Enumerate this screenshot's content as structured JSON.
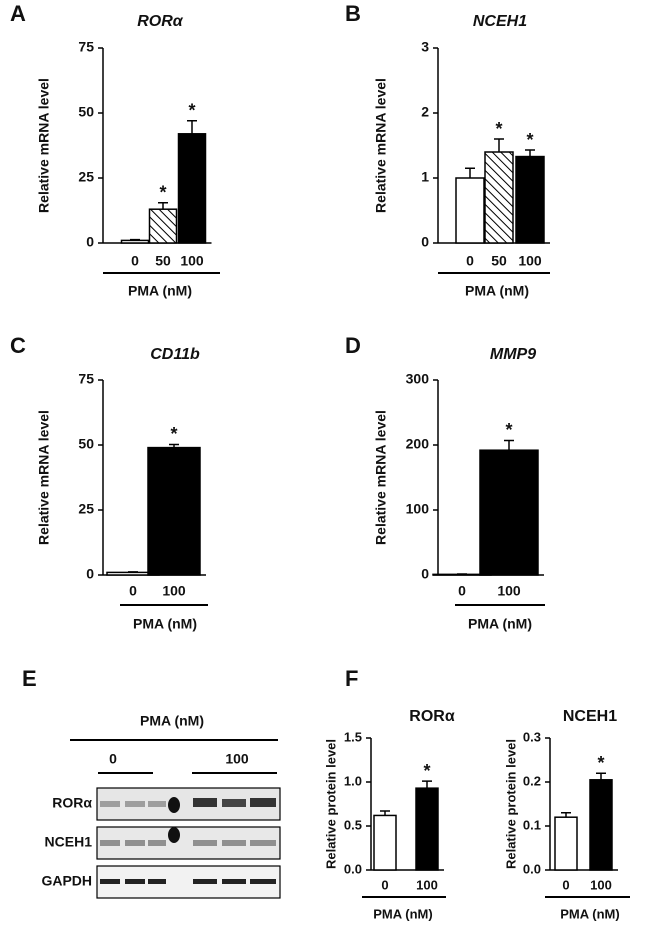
{
  "chart_data": [
    {
      "type": "bar",
      "panel": "A",
      "title": "RORα",
      "italic_title": true,
      "ylabel": "Relative mRNA level",
      "xlabel": "PMA (nM)",
      "categories": [
        "0",
        "50",
        "100"
      ],
      "values": [
        1,
        13,
        42
      ],
      "errors": [
        0.3,
        2.5,
        5
      ],
      "significance": [
        null,
        "*",
        "*"
      ],
      "fills": [
        "#ffffff",
        "hatch",
        "#000000"
      ],
      "ylim": [
        0,
        75
      ],
      "yticks": [
        0,
        25,
        50,
        75
      ]
    },
    {
      "type": "bar",
      "panel": "B",
      "title": "NCEH1",
      "italic_title": true,
      "ylabel": "Relative mRNA level",
      "xlabel": "PMA (nM)",
      "categories": [
        "0",
        "50",
        "100"
      ],
      "values": [
        1.0,
        1.4,
        1.33
      ],
      "errors": [
        0.15,
        0.2,
        0.1
      ],
      "significance": [
        null,
        "*",
        "*"
      ],
      "fills": [
        "#ffffff",
        "hatch",
        "#000000"
      ],
      "ylim": [
        0,
        3
      ],
      "yticks": [
        0,
        1,
        2,
        3
      ]
    },
    {
      "type": "bar",
      "panel": "C",
      "title": "CD11b",
      "italic_title": true,
      "ylabel": "Relative mRNA level",
      "xlabel": "PMA (nM)",
      "categories": [
        "0",
        "100"
      ],
      "values": [
        1,
        49
      ],
      "errors": [
        0.2,
        1.2
      ],
      "significance": [
        null,
        "*"
      ],
      "fills": [
        "#ffffff",
        "#000000"
      ],
      "ylim": [
        0,
        75
      ],
      "yticks": [
        0,
        25,
        50,
        75
      ]
    },
    {
      "type": "bar",
      "panel": "D",
      "title": "MMP9",
      "italic_title": true,
      "ylabel": "Relative mRNA level",
      "xlabel": "PMA (nM)",
      "categories": [
        "0",
        "100"
      ],
      "values": [
        1,
        192
      ],
      "errors": [
        0.5,
        15
      ],
      "significance": [
        null,
        "*"
      ],
      "fills": [
        "#ffffff",
        "#000000"
      ],
      "ylim": [
        0,
        300
      ],
      "yticks": [
        0,
        100,
        200,
        300
      ]
    },
    {
      "type": "bar",
      "panel": "F",
      "title": "RORα",
      "italic_title": false,
      "ylabel": "Relative protein level",
      "xlabel": "PMA (nM)",
      "categories": [
        "0",
        "100"
      ],
      "values": [
        0.62,
        0.93
      ],
      "errors": [
        0.05,
        0.08
      ],
      "significance": [
        null,
        "*"
      ],
      "fills": [
        "#ffffff",
        "#000000"
      ],
      "ylim": [
        0,
        1.5
      ],
      "yticks": [
        {
          "value": 0,
          "label": "0.0"
        },
        0.5,
        {
          "value": 1,
          "label": "1.0"
        },
        1.5
      ]
    },
    {
      "type": "bar",
      "title": "NCEH1",
      "italic_title": false,
      "ylabel": "Relative protein level",
      "xlabel": "PMA (nM)",
      "categories": [
        "0",
        "100"
      ],
      "values": [
        0.12,
        0.205
      ],
      "errors": [
        0.01,
        0.015
      ],
      "significance": [
        null,
        "*"
      ],
      "fills": [
        "#ffffff",
        "#000000"
      ],
      "ylim": [
        0,
        0.3
      ],
      "yticks": [
        {
          "value": 0,
          "label": "0.0"
        },
        0.1,
        0.2,
        0.3
      ]
    }
  ],
  "blot": {
    "panel": "E",
    "treatment": "PMA (nM)",
    "doses": [
      "0",
      "100"
    ],
    "rows": [
      "RORα",
      "NCEH1",
      "GAPDH"
    ]
  }
}
